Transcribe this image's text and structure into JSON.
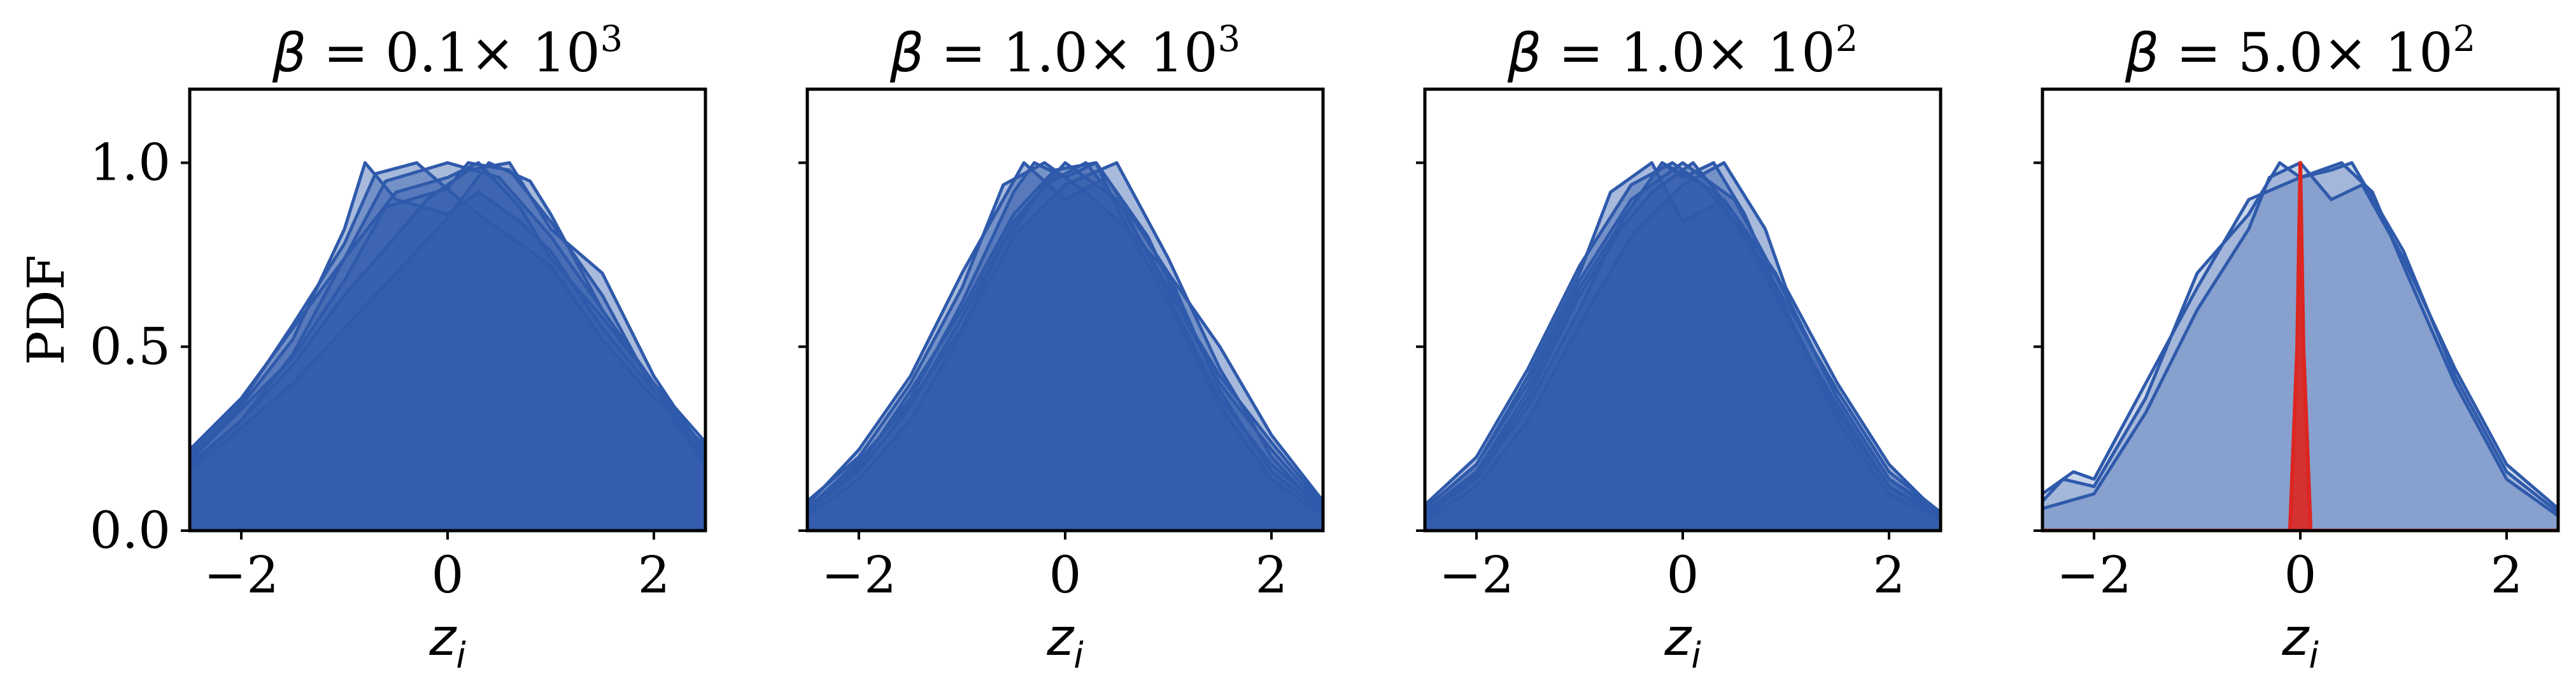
{
  "chart_data": [
    {
      "type": "area",
      "title": {
        "symbol": "β",
        "text": " = 0.1× 10",
        "exp": "3"
      },
      "ylabel": "PDF",
      "xlabel": {
        "base": "z",
        "sub": "i"
      },
      "xlim": [
        -2.5,
        2.5
      ],
      "ylim": [
        0,
        1.2
      ],
      "xticks": [
        -2,
        0,
        2
      ],
      "xticklabels": [
        "−2",
        "0",
        "2"
      ],
      "yticks": [
        0.0,
        0.5,
        1.0
      ],
      "yticklabels": [
        "0.0",
        "0.5",
        "1.0"
      ],
      "show_ytick_labels": true,
      "series": [
        {
          "x": [
            -2.5,
            -2.0,
            -1.5,
            -1.0,
            -0.8,
            -0.5,
            0.0,
            0.3,
            0.7,
            1.0,
            1.5,
            2.0,
            2.5
          ],
          "y": [
            0.2,
            0.34,
            0.52,
            0.82,
            1.0,
            0.9,
            0.86,
            0.92,
            0.84,
            0.76,
            0.55,
            0.38,
            0.2
          ]
        },
        {
          "x": [
            -2.5,
            -2.0,
            -1.5,
            -1.0,
            -0.6,
            0.0,
            0.5,
            1.0,
            1.5,
            2.0,
            2.5
          ],
          "y": [
            0.18,
            0.3,
            0.48,
            0.74,
            0.95,
            1.0,
            0.96,
            0.8,
            0.6,
            0.4,
            0.22
          ]
        },
        {
          "x": [
            -2.5,
            -2.0,
            -1.5,
            -1.0,
            -0.5,
            0.0,
            0.4,
            0.8,
            1.0,
            1.5,
            2.0,
            2.5
          ],
          "y": [
            0.16,
            0.28,
            0.4,
            0.55,
            0.7,
            0.85,
            1.0,
            0.95,
            0.86,
            0.6,
            0.4,
            0.19
          ]
        },
        {
          "x": [
            -2.5,
            -2.0,
            -1.5,
            -1.0,
            -0.5,
            0.0,
            0.3,
            0.7,
            1.0,
            1.5,
            2.0,
            2.5
          ],
          "y": [
            0.22,
            0.36,
            0.55,
            0.74,
            0.92,
            0.96,
            1.0,
            0.88,
            0.74,
            0.58,
            0.4,
            0.24
          ]
        },
        {
          "x": [
            -2.5,
            -2.0,
            -1.5,
            -1.0,
            -0.6,
            0.0,
            0.2,
            0.6,
            1.0,
            1.5,
            2.0,
            2.5
          ],
          "y": [
            0.19,
            0.33,
            0.47,
            0.68,
            0.88,
            0.93,
            1.0,
            0.98,
            0.84,
            0.64,
            0.38,
            0.18
          ]
        },
        {
          "x": [
            -2.5,
            -2.0,
            -1.5,
            -1.0,
            -0.5,
            -0.2,
            0.2,
            0.6,
            1.0,
            1.5,
            2.0,
            2.5
          ],
          "y": [
            0.17,
            0.3,
            0.45,
            0.64,
            0.8,
            0.9,
            0.98,
            1.0,
            0.82,
            0.7,
            0.42,
            0.21
          ]
        },
        {
          "x": [
            -2.5,
            -2.0,
            -1.5,
            -1.0,
            -0.7,
            -0.3,
            0.2,
            0.6,
            1.0,
            1.5,
            2.0,
            2.5
          ],
          "y": [
            0.21,
            0.35,
            0.56,
            0.78,
            0.97,
            1.0,
            0.88,
            0.8,
            0.72,
            0.52,
            0.36,
            0.23
          ]
        }
      ]
    },
    {
      "type": "area",
      "title": {
        "symbol": "β",
        "text": " = 1.0× 10",
        "exp": "3"
      },
      "ylabel": "",
      "xlabel": {
        "base": "z",
        "sub": "i"
      },
      "xlim": [
        -2.5,
        2.5
      ],
      "ylim": [
        0,
        1.2
      ],
      "xticks": [
        -2,
        0,
        2
      ],
      "xticklabels": [
        "−2",
        "0",
        "2"
      ],
      "yticks": [
        0.0,
        0.5,
        1.0
      ],
      "yticklabels": [],
      "show_ytick_labels": false,
      "series": [
        {
          "x": [
            -2.5,
            -2.0,
            -1.5,
            -1.0,
            -0.5,
            -0.3,
            0.0,
            0.3,
            0.5,
            1.0,
            1.5,
            2.0,
            2.5
          ],
          "y": [
            0.06,
            0.18,
            0.36,
            0.62,
            0.92,
            1.0,
            0.96,
            1.0,
            0.88,
            0.62,
            0.34,
            0.14,
            0.04
          ]
        },
        {
          "x": [
            -2.5,
            -2.0,
            -1.5,
            -1.0,
            -0.5,
            0.0,
            0.5,
            1.0,
            1.5,
            2.0,
            2.5
          ],
          "y": [
            0.05,
            0.16,
            0.34,
            0.58,
            0.84,
            1.0,
            0.9,
            0.66,
            0.4,
            0.22,
            0.06
          ]
        },
        {
          "x": [
            -2.5,
            -2.0,
            -1.5,
            -1.0,
            -0.6,
            -0.2,
            0.2,
            0.6,
            1.0,
            1.5,
            2.0,
            2.5
          ],
          "y": [
            0.08,
            0.2,
            0.4,
            0.66,
            0.94,
            1.0,
            0.92,
            0.82,
            0.7,
            0.5,
            0.26,
            0.08
          ]
        },
        {
          "x": [
            -2.5,
            -2.0,
            -1.5,
            -1.0,
            -0.5,
            0.0,
            0.5,
            1.0,
            1.5,
            1.8,
            2.0,
            2.5
          ],
          "y": [
            0.04,
            0.14,
            0.3,
            0.54,
            0.8,
            0.94,
            1.0,
            0.74,
            0.44,
            0.3,
            0.2,
            0.05
          ]
        },
        {
          "x": [
            -2.5,
            -2.0,
            -1.5,
            -1.0,
            -0.4,
            0.0,
            0.4,
            1.0,
            1.5,
            2.0,
            2.5
          ],
          "y": [
            0.07,
            0.22,
            0.42,
            0.7,
            1.0,
            0.9,
            0.96,
            0.7,
            0.38,
            0.16,
            0.05
          ]
        },
        {
          "x": [
            -2.5,
            -2.0,
            -1.5,
            -1.0,
            -0.5,
            -0.1,
            0.3,
            0.8,
            1.2,
            1.5,
            2.0,
            2.5
          ],
          "y": [
            0.05,
            0.17,
            0.38,
            0.6,
            0.86,
            0.98,
            1.0,
            0.8,
            0.56,
            0.42,
            0.24,
            0.07
          ]
        },
        {
          "x": [
            -2.5,
            -2.0,
            -1.5,
            -1.0,
            -0.6,
            -0.2,
            0.2,
            0.6,
            1.0,
            1.5,
            2.0,
            2.5
          ],
          "y": [
            0.06,
            0.19,
            0.35,
            0.55,
            0.78,
            0.94,
            1.0,
            0.86,
            0.64,
            0.36,
            0.18,
            0.06
          ]
        }
      ]
    },
    {
      "type": "area",
      "title": {
        "symbol": "β",
        "text": " = 1.0× 10",
        "exp": "2"
      },
      "ylabel": "",
      "xlabel": {
        "base": "z",
        "sub": "i"
      },
      "xlim": [
        -2.5,
        2.5
      ],
      "ylim": [
        0,
        1.2
      ],
      "xticks": [
        -2,
        0,
        2
      ],
      "xticklabels": [
        "−2",
        "0",
        "2"
      ],
      "yticks": [
        0.0,
        0.5,
        1.0
      ],
      "yticklabels": [],
      "show_ytick_labels": false,
      "series": [
        {
          "x": [
            -2.5,
            -2.0,
            -1.5,
            -1.0,
            -0.5,
            -0.2,
            0.0,
            0.3,
            0.6,
            1.0,
            1.5,
            2.0,
            2.5
          ],
          "y": [
            0.05,
            0.16,
            0.38,
            0.66,
            0.88,
            1.0,
            0.96,
            1.0,
            0.86,
            0.6,
            0.3,
            0.1,
            0.03
          ]
        },
        {
          "x": [
            -2.5,
            -2.0,
            -1.5,
            -1.0,
            -0.5,
            0.0,
            0.5,
            1.0,
            1.5,
            2.0,
            2.5
          ],
          "y": [
            0.06,
            0.18,
            0.4,
            0.68,
            0.9,
            1.0,
            0.9,
            0.64,
            0.36,
            0.14,
            0.04
          ]
        },
        {
          "x": [
            -2.5,
            -2.0,
            -1.5,
            -1.0,
            -0.6,
            -0.2,
            0.2,
            0.6,
            1.0,
            1.5,
            2.0,
            2.5
          ],
          "y": [
            0.04,
            0.14,
            0.34,
            0.6,
            0.84,
            1.0,
            0.94,
            0.8,
            0.58,
            0.34,
            0.12,
            0.03
          ]
        },
        {
          "x": [
            -2.5,
            -2.0,
            -1.5,
            -1.0,
            -0.5,
            -0.1,
            0.3,
            0.7,
            1.0,
            1.5,
            2.0,
            2.5
          ],
          "y": [
            0.07,
            0.2,
            0.44,
            0.72,
            0.94,
            1.0,
            0.92,
            0.76,
            0.6,
            0.32,
            0.12,
            0.04
          ]
        },
        {
          "x": [
            -2.5,
            -2.0,
            -1.5,
            -1.0,
            -0.6,
            -0.3,
            0.1,
            0.5,
            1.0,
            1.5,
            2.0,
            2.5
          ],
          "y": [
            0.05,
            0.15,
            0.36,
            0.64,
            0.82,
            0.92,
            1.0,
            0.86,
            0.62,
            0.38,
            0.16,
            0.05
          ]
        },
        {
          "x": [
            -2.5,
            -2.0,
            -1.5,
            -1.0,
            -0.5,
            0.0,
            0.4,
            0.8,
            1.0,
            1.5,
            2.0,
            2.5
          ],
          "y": [
            0.03,
            0.12,
            0.3,
            0.56,
            0.8,
            0.94,
            1.0,
            0.82,
            0.66,
            0.4,
            0.18,
            0.04
          ]
        },
        {
          "x": [
            -2.5,
            -2.0,
            -1.5,
            -1.0,
            -0.7,
            -0.3,
            0.0,
            0.4,
            0.9,
            1.5,
            2.0,
            2.5
          ],
          "y": [
            0.06,
            0.18,
            0.42,
            0.7,
            0.92,
            1.0,
            0.84,
            0.9,
            0.7,
            0.36,
            0.14,
            0.05
          ]
        }
      ]
    },
    {
      "type": "area",
      "title": {
        "symbol": "β",
        "text": " = 5.0× 10",
        "exp": "2"
      },
      "ylabel": "",
      "xlabel": {
        "base": "z",
        "sub": "i"
      },
      "xlim": [
        -2.5,
        2.5
      ],
      "ylim": [
        0,
        1.2
      ],
      "xticks": [
        -2,
        0,
        2
      ],
      "xticklabels": [
        "−2",
        "0",
        "2"
      ],
      "yticks": [
        0.0,
        0.5,
        1.0
      ],
      "yticklabels": [],
      "show_ytick_labels": false,
      "series": [
        {
          "x": [
            -2.5,
            -2.3,
            -2.0,
            -1.5,
            -1.0,
            -0.5,
            -0.2,
            0.0,
            0.3,
            0.5,
            1.0,
            1.5,
            2.0,
            2.5
          ],
          "y": [
            0.08,
            0.14,
            0.12,
            0.36,
            0.7,
            0.86,
            1.0,
            0.96,
            0.98,
            1.0,
            0.76,
            0.42,
            0.16,
            0.05
          ]
        },
        {
          "x": [
            -2.5,
            -2.2,
            -2.0,
            -1.5,
            -1.0,
            -0.5,
            0.0,
            0.4,
            0.7,
            1.0,
            1.5,
            2.0,
            2.5
          ],
          "y": [
            0.1,
            0.16,
            0.14,
            0.4,
            0.66,
            0.9,
            0.96,
            1.0,
            0.92,
            0.72,
            0.4,
            0.14,
            0.04
          ]
        },
        {
          "x": [
            -2.5,
            -2.0,
            -1.5,
            -1.0,
            -0.5,
            -0.3,
            0.0,
            0.3,
            0.6,
            1.0,
            1.5,
            2.0,
            2.5
          ],
          "y": [
            0.06,
            0.1,
            0.32,
            0.6,
            0.82,
            0.96,
            1.0,
            0.9,
            0.94,
            0.74,
            0.44,
            0.18,
            0.06
          ]
        }
      ],
      "spike": {
        "x": [
          -2.5,
          -0.1,
          -0.03,
          0.0,
          0.03,
          0.1,
          2.5
        ],
        "y": [
          0.0,
          0.0,
          0.5,
          1.0,
          0.5,
          0.0,
          0.0
        ]
      }
    }
  ],
  "colors": {
    "line": "#2f5aab",
    "fill_dense": "#5577b6",
    "fill_light": "#a9bcdc",
    "spike": "#dc2620",
    "axis": "#000000"
  }
}
